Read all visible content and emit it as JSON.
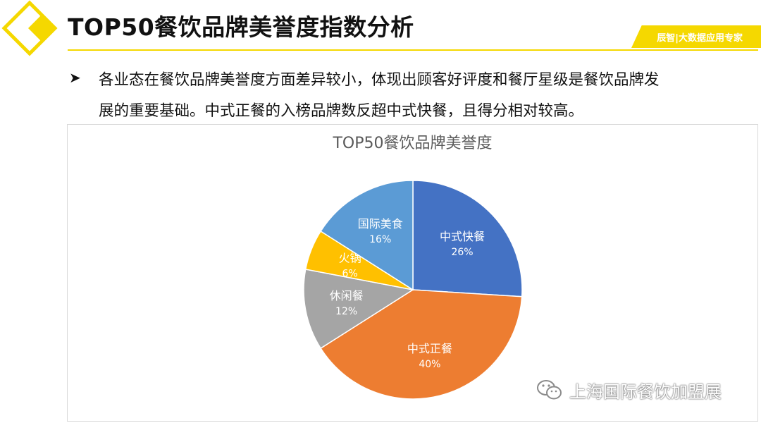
{
  "header": {
    "title": "TOP50餐饮品牌美誉度指数分析",
    "brand_tag": "辰智|大数据应用专家",
    "accent_color": "#F5D800"
  },
  "bullet": {
    "arrow_icon": "arrow-bullet-icon",
    "line1": "各业态在餐饮品牌美誉度方面差异较小，体现出顾客好评度和餐厅星级是餐饮品牌发",
    "line2": "展的重要基础。中式正餐的入榜品牌数反超中式快餐，且得分相对较高。"
  },
  "chart_data": {
    "type": "pie",
    "title": "TOP50餐饮品牌美誉度",
    "start": "12 o'clock, clockwise",
    "slices": [
      {
        "label": "中式快餐",
        "value": 26,
        "display": "26%",
        "color": "#4472C4",
        "label_color": "#FFFFFF"
      },
      {
        "label": "中式正餐",
        "value": 40,
        "display": "40%",
        "color": "#ED7D31",
        "label_color": "#FFFFFF"
      },
      {
        "label": "休闲餐",
        "value": 12,
        "display": "12%",
        "color": "#A5A5A5",
        "label_color": "#FFFFFF"
      },
      {
        "label": "火锅",
        "value": 6,
        "display": "6%",
        "color": "#FFC000",
        "label_color": "#FFFFFF"
      },
      {
        "label": "国际美食",
        "value": 16,
        "display": "16%",
        "color": "#5B9BD5",
        "label_color": "#FFFFFF"
      }
    ]
  },
  "watermark": {
    "icon": "wechat-icon",
    "text": "上海国际餐饮加盟展"
  }
}
